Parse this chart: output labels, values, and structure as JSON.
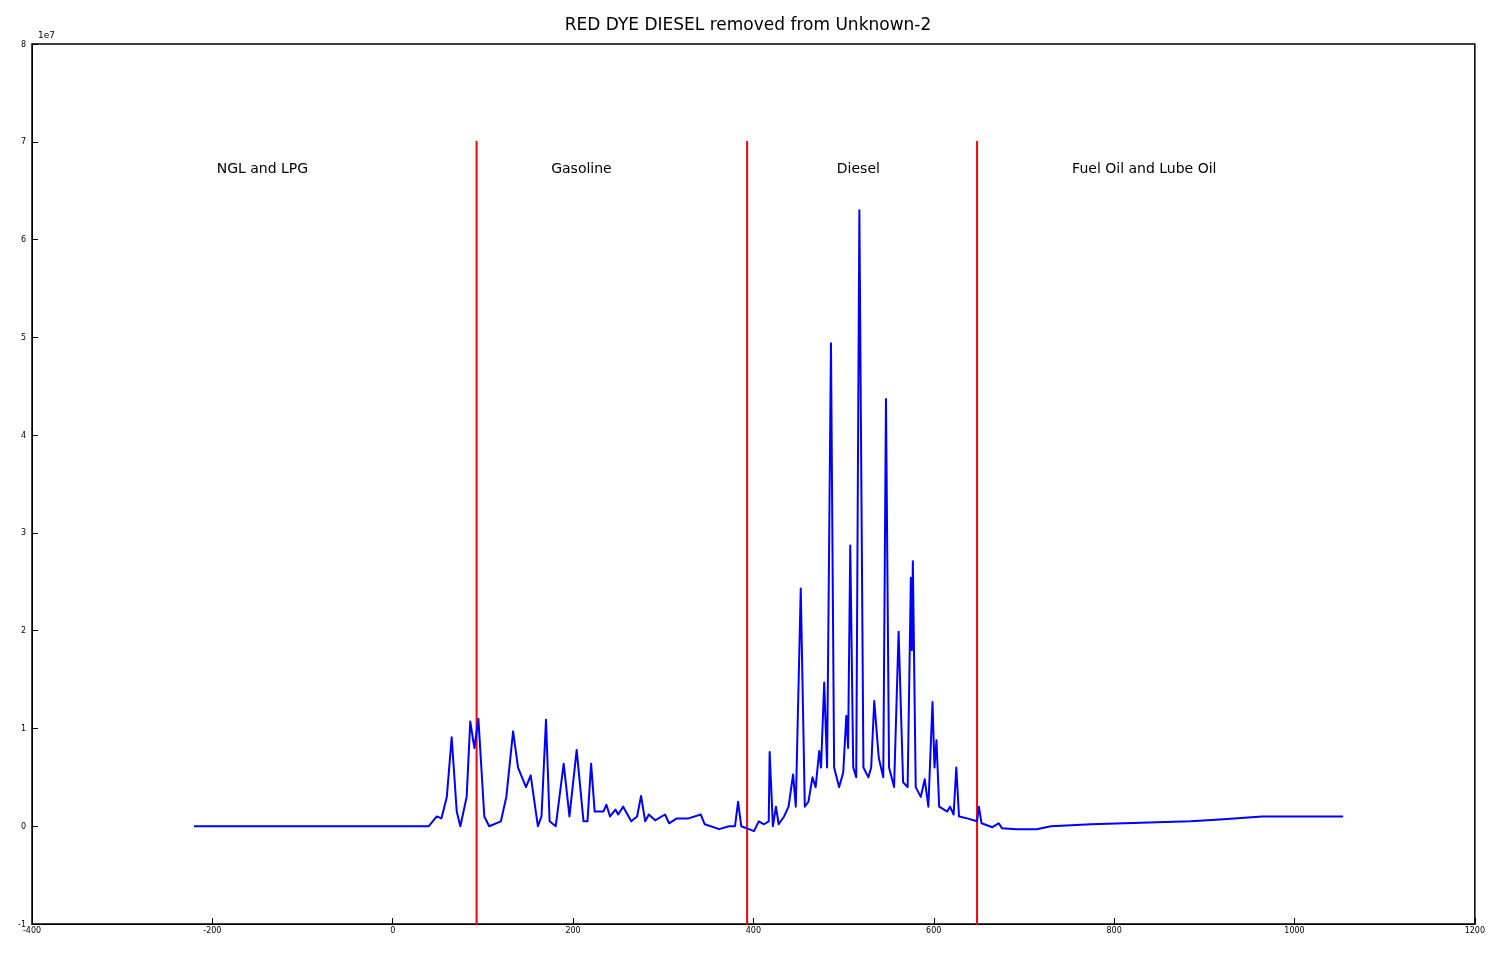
{
  "chart_data": {
    "type": "line",
    "title": "RED DYE DIESEL removed from Unknown-2",
    "xlim": [
      -400,
      1200
    ],
    "xticks": [
      -400,
      -200,
      0,
      200,
      400,
      600,
      800,
      1000,
      1200
    ],
    "ylim": [
      -1,
      8
    ],
    "yticks": [
      -1,
      0,
      1,
      2,
      3,
      4,
      5,
      6,
      7,
      8
    ],
    "grid": false,
    "marker": "none",
    "line_style": "solid",
    "annotations": [
      "1e7",
      "NGL and LPG",
      "Gasoline",
      "Diesel",
      "Fuel Oil and Lube Oil"
    ],
    "series": [
      {
        "color": "#0000ff",
        "x": [
          -219.5,
          40,
          48.9,
          54,
          60,
          65.4,
          71,
          75,
          82,
          86,
          90.6,
          95,
          101.6,
          107,
          120,
          126,
          133.5,
          139,
          147.8,
          153,
          161,
          165,
          170,
          174,
          180.8,
          189.6,
          196,
          204,
          211.6,
          216,
          220,
          224,
          233.6,
          237,
          241,
          247,
          250,
          255.6,
          264.5,
          271,
          275.4,
          280,
          284,
          291,
          302,
          306.5,
          315,
          328,
          341.6,
          346,
          362,
          373,
          379.6,
          383,
          386.5,
          395,
          400.6,
          406,
          411.7,
          417,
          418,
          421.6,
          425,
          428,
          434,
          439,
          444,
          447,
          452.5,
          457,
          461,
          465.5,
          469,
          473,
          475,
          478.5,
          481.7,
          486,
          489.5,
          495,
          499.6,
          503,
          505,
          507.4,
          510.7,
          514,
          517.5,
          522,
          527.5,
          530.6,
          534,
          539,
          544,
          547,
          550.4,
          556,
          561,
          566,
          571,
          574.6,
          575.7,
          576.8,
          580,
          585.6,
          590,
          594,
          598.6,
          600.8,
          603,
          606,
          615,
          618,
          622,
          625,
          628,
          637,
          648,
          650,
          653,
          665,
          672,
          675.6,
          692,
          714,
          730,
          774.6,
          884.6,
          917.5,
          964,
          1053
        ],
        "values": [
          0,
          0,
          0.1,
          0.08,
          0.3,
          0.91,
          0.15,
          0,
          0.3,
          1.07,
          0.8,
          1.1,
          0.1,
          0,
          0.05,
          0.3,
          0.97,
          0.6,
          0.4,
          0.52,
          0,
          0.1,
          1.09,
          0.05,
          0,
          0.64,
          0.1,
          0.78,
          0.05,
          0.05,
          0.64,
          0.15,
          0.15,
          0.22,
          0.1,
          0.17,
          0.12,
          0.2,
          0.05,
          0.1,
          0.31,
          0.05,
          0.12,
          0.06,
          0.12,
          0.03,
          0.08,
          0.08,
          0.12,
          0.02,
          -0.03,
          0,
          0,
          0.25,
          0,
          -0.03,
          -0.05,
          0.05,
          0.02,
          0.05,
          0.76,
          0,
          0.2,
          0.02,
          0.1,
          0.2,
          0.53,
          0.2,
          2.43,
          0.2,
          0.25,
          0.5,
          0.4,
          0.77,
          0.6,
          1.47,
          0.6,
          4.94,
          0.6,
          0.4,
          0.55,
          1.13,
          0.8,
          2.87,
          0.6,
          0.5,
          6.3,
          0.6,
          0.5,
          0.6,
          1.28,
          0.7,
          0.5,
          4.37,
          0.6,
          0.4,
          1.99,
          0.45,
          0.4,
          2.54,
          1.8,
          2.71,
          0.4,
          0.3,
          0.48,
          0.2,
          1.27,
          0.6,
          0.88,
          0.2,
          0.15,
          0.2,
          0.12,
          0.6,
          0.1,
          0.08,
          0.05,
          0.2,
          0.03,
          -0.01,
          0.03,
          -0.02,
          -0.03,
          -0.03,
          0,
          0.02,
          0.05,
          0.07,
          0.1,
          0.1
        ]
      },
      {
        "color": "#ff0000",
        "x": [
          93,
          93
        ],
        "values": [
          -1,
          7
        ]
      },
      {
        "color": "#ff0000",
        "x": [
          393,
          393
        ],
        "values": [
          -1,
          7
        ]
      },
      {
        "color": "#ff0000",
        "x": [
          648,
          648
        ],
        "values": [
          -1,
          7
        ]
      }
    ]
  }
}
